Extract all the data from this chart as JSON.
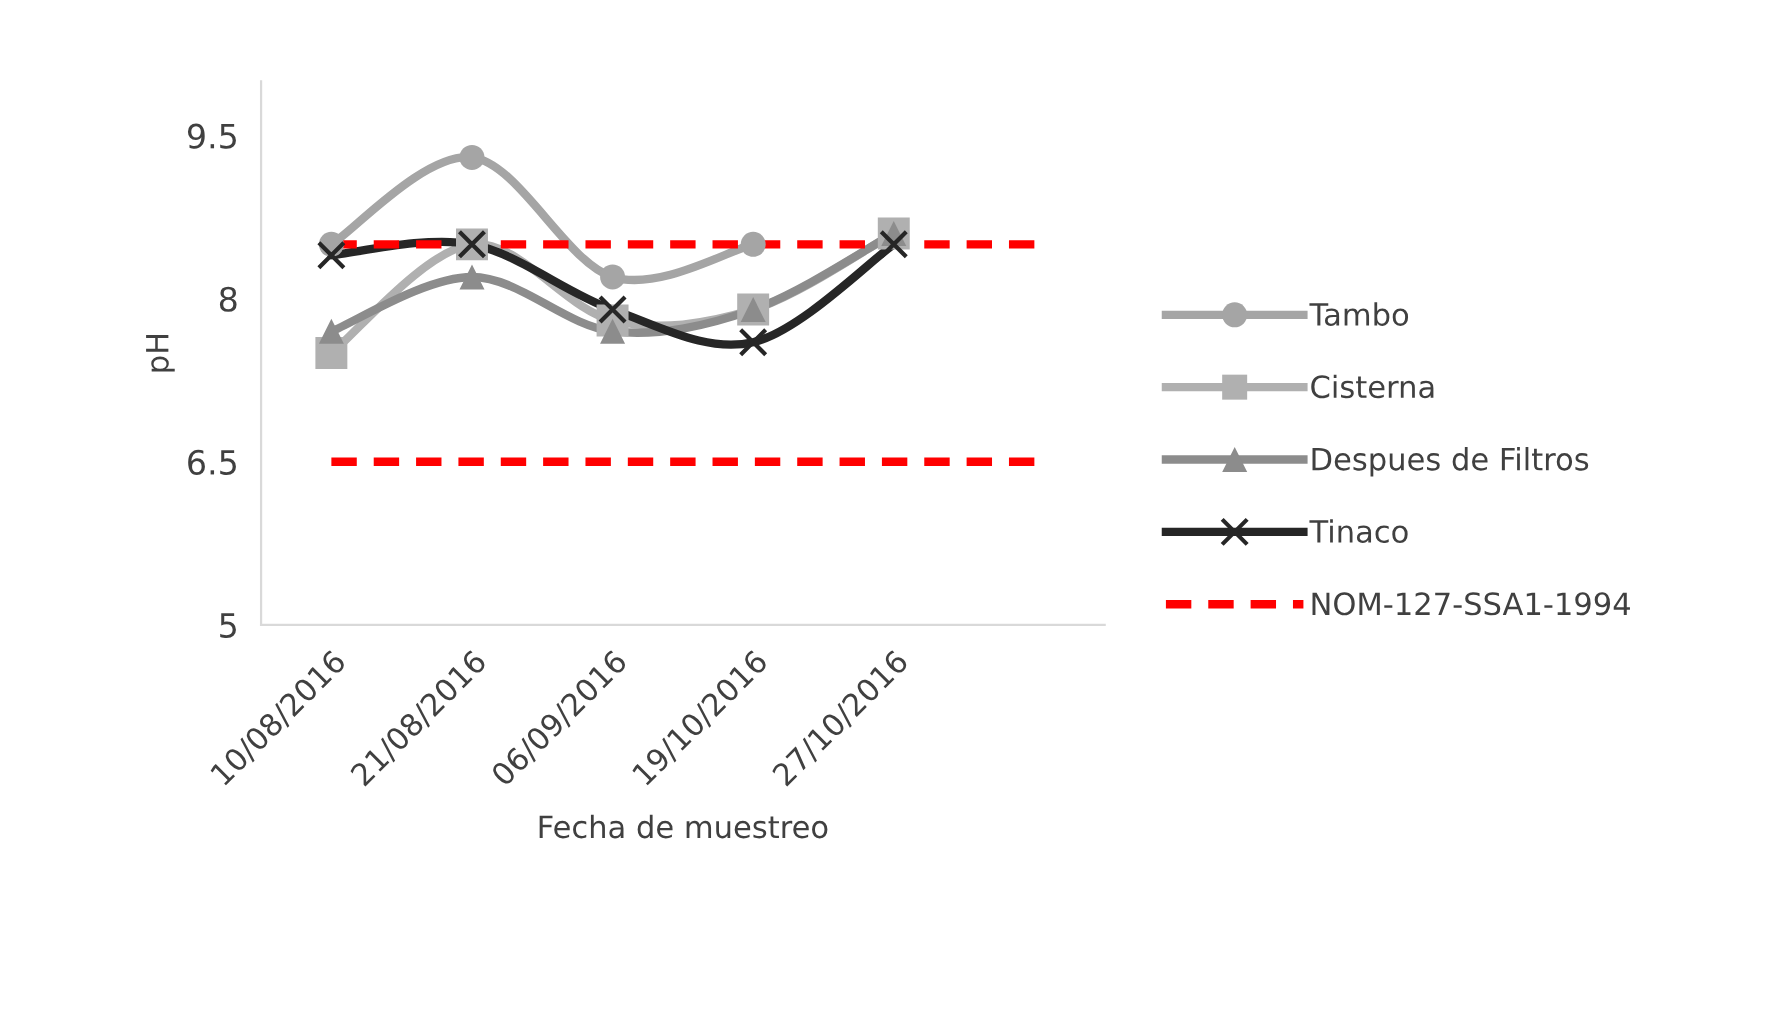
{
  "chart_data": {
    "type": "line",
    "ylabel": "pH",
    "xlabel": "Fecha de muestreo",
    "categories": [
      "10/08/2016",
      "21/08/2016",
      "06/09/2016",
      "19/10/2016",
      "27/10/2016",
      null
    ],
    "ylim": [
      5,
      10
    ],
    "yticks": [
      5,
      6.5,
      8,
      9.5
    ],
    "grid": false,
    "legend": "right",
    "series": [
      {
        "name": "Tambo",
        "color": "#a5a5a5",
        "marker": "circle",
        "values": [
          8.5,
          9.3,
          8.2,
          8.5,
          null,
          null
        ]
      },
      {
        "name": "Cisterna",
        "color": "#b0b0b0",
        "marker": "square",
        "values": [
          7.5,
          8.5,
          7.8,
          7.9,
          8.6,
          null
        ]
      },
      {
        "name": "Despues de Filtros",
        "color": "#8c8c8c",
        "marker": "triangle",
        "values": [
          7.7,
          8.2,
          7.7,
          7.9,
          8.6,
          null
        ]
      },
      {
        "name": "Tinaco",
        "color": "#262626",
        "marker": "cross",
        "values": [
          8.4,
          8.5,
          7.9,
          7.6,
          8.5,
          null
        ]
      },
      {
        "name": "NOM-127-SSA1-1994",
        "color": "#ff0000",
        "marker": "none",
        "line_style": "dashed",
        "values": [
          8.5,
          8.5,
          8.5,
          8.5,
          8.5,
          8.5
        ]
      },
      {
        "color": "#ff0000",
        "marker": "none",
        "line_style": "dashed",
        "values": [
          6.5,
          6.5,
          6.5,
          6.5,
          6.5,
          6.5
        ]
      }
    ]
  }
}
